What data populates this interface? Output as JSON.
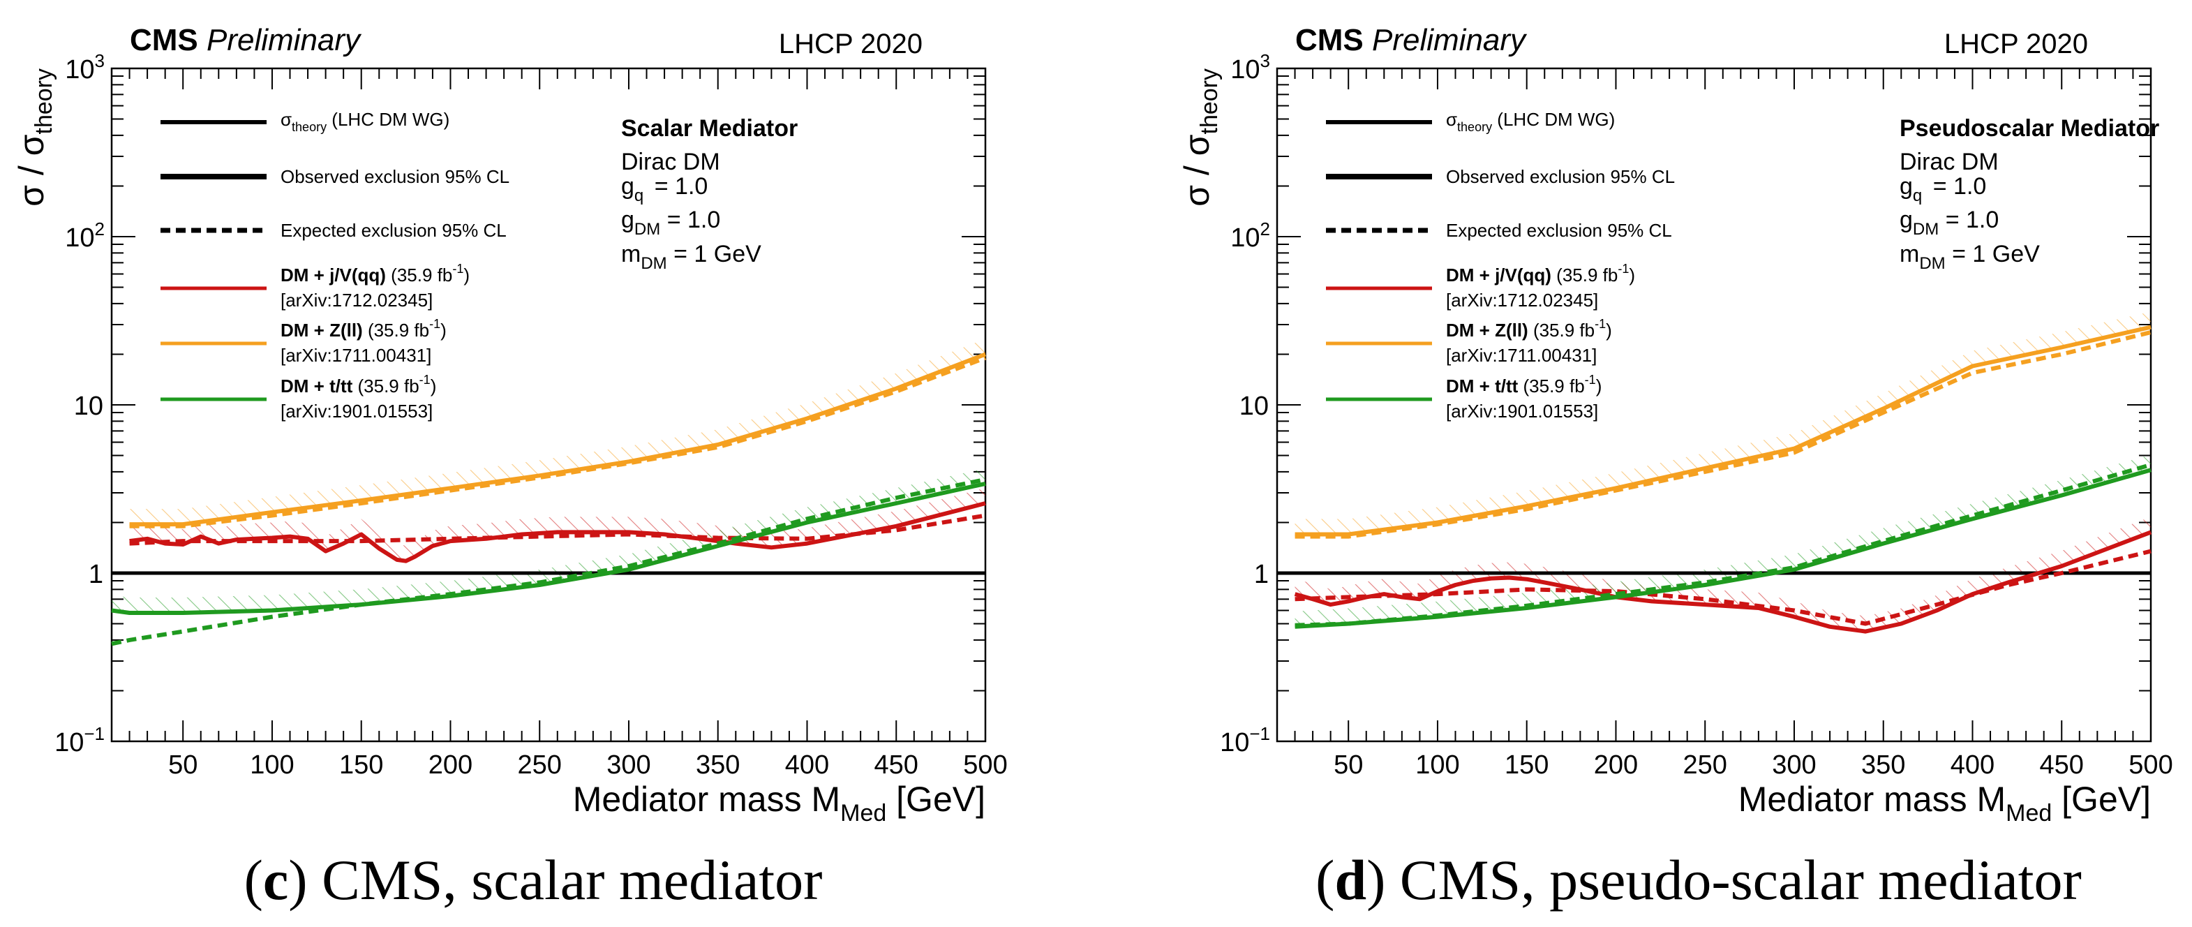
{
  "colors": {
    "axis": "#000000",
    "theory": "#000000",
    "jv": "#cc1414",
    "zll": "#f5a020",
    "ttbar": "#1f9a1f"
  },
  "legend": {
    "theory_sym": "σ",
    "theory_sub": "theory",
    "theory_tail": "(LHC DM WG)",
    "observed": "Observed exclusion 95% CL",
    "expected": "Expected exclusion 95% CL",
    "jv_bold": "DM + j/V(qq)",
    "jv_lumi": "(35.9 fb",
    "jv_ref": "[arXiv:1712.02345]",
    "zll_bold": "DM + Z(ll)",
    "zll_lumi": "(35.9 fb",
    "zll_ref": "[arXiv:1711.00431]",
    "tt_bold": "DM + t/tt",
    "tt_lumi": "(35.9 fb",
    "tt_ref": "[arXiv:1901.01553]",
    "lumi_exp": "-1",
    "lumi_close": ")"
  },
  "model": {
    "dirac": "Dirac DM",
    "gq_base": "g",
    "gq_sub": "q",
    "gq_val": "= 1.0",
    "gdm_base": "g",
    "gdm_sub": "DM",
    "gdm_val": "= 1.0",
    "mdm_base": "m",
    "mdm_sub": "DM",
    "mdm_val": "= 1 GeV"
  },
  "axes": {
    "y_sigma": "σ / σ",
    "y_sub": "theory",
    "x_label": "Mediator mass M",
    "x_sub": "Med",
    "x_unit": "[GeV]",
    "y_tick_labels": [
      "1",
      "10"
    ],
    "y_tick_base": "10",
    "y_tick_exps": [
      "−1",
      "2",
      "3"
    ]
  },
  "chart_data": [
    {
      "type": "line",
      "cms": "CMS",
      "prelim": "Preliminary",
      "conference": "LHCP 2020",
      "title": "Scalar Mediator",
      "caption_letter": "c",
      "caption_text": " CMS, scalar mediator",
      "x_range": [
        10,
        500
      ],
      "y_range": [
        0.1,
        1000
      ],
      "y_scale": "log",
      "x_ticks": [
        50,
        100,
        150,
        200,
        250,
        300,
        350,
        400,
        450,
        500
      ],
      "theory_line": 1,
      "series": [
        {
          "name": "DM + j/V(qq) observed",
          "key": "jv",
          "style": "solid",
          "x": [
            20,
            30,
            40,
            50,
            60,
            70,
            80,
            90,
            100,
            110,
            120,
            130,
            140,
            150,
            160,
            170,
            175,
            180,
            190,
            200,
            220,
            240,
            260,
            280,
            300,
            320,
            340,
            360,
            380,
            400,
            450,
            500
          ],
          "y": [
            1.55,
            1.6,
            1.5,
            1.48,
            1.65,
            1.5,
            1.58,
            1.6,
            1.62,
            1.65,
            1.6,
            1.35,
            1.5,
            1.7,
            1.4,
            1.2,
            1.18,
            1.25,
            1.45,
            1.55,
            1.6,
            1.7,
            1.75,
            1.75,
            1.75,
            1.7,
            1.6,
            1.5,
            1.42,
            1.5,
            1.9,
            2.6
          ]
        },
        {
          "name": "DM + j/V(qq) expected",
          "key": "jv",
          "style": "dashed",
          "x": [
            20,
            50,
            100,
            150,
            200,
            250,
            300,
            350,
            400,
            450,
            500
          ],
          "y": [
            1.5,
            1.55,
            1.55,
            1.55,
            1.6,
            1.65,
            1.7,
            1.62,
            1.6,
            1.8,
            2.2
          ]
        },
        {
          "name": "DM + Z(ll) observed",
          "key": "zll",
          "style": "solid",
          "x": [
            20,
            50,
            100,
            150,
            200,
            250,
            300,
            350,
            400,
            450,
            500
          ],
          "y": [
            1.95,
            1.95,
            2.3,
            2.7,
            3.2,
            3.8,
            4.6,
            5.8,
            8.3,
            12.5,
            20
          ]
        },
        {
          "name": "DM + Z(ll) expected",
          "key": "zll",
          "style": "dashed",
          "x": [
            20,
            50,
            100,
            150,
            200,
            250,
            300,
            350,
            400,
            450,
            500
          ],
          "y": [
            1.9,
            1.9,
            2.2,
            2.6,
            3.1,
            3.7,
            4.5,
            5.6,
            8.0,
            12.0,
            19
          ]
        },
        {
          "name": "DM + t/tt observed",
          "key": "ttbar",
          "style": "solid",
          "x": [
            10,
            20,
            50,
            100,
            150,
            200,
            250,
            300,
            350,
            400,
            450,
            500
          ],
          "y": [
            0.6,
            0.58,
            0.58,
            0.6,
            0.65,
            0.73,
            0.85,
            1.05,
            1.45,
            2.0,
            2.6,
            3.4
          ]
        },
        {
          "name": "DM + t/tt expected",
          "key": "ttbar",
          "style": "dashed",
          "x": [
            10,
            20,
            50,
            100,
            150,
            200,
            250,
            300,
            350,
            400,
            450,
            500
          ],
          "y": [
            0.38,
            0.4,
            0.45,
            0.55,
            0.65,
            0.75,
            0.88,
            1.1,
            1.5,
            2.1,
            2.8,
            3.6
          ]
        }
      ]
    },
    {
      "type": "line",
      "cms": "CMS",
      "prelim": "Preliminary",
      "conference": "LHCP 2020",
      "title": "Pseudoscalar Mediator",
      "caption_letter": "d",
      "caption_text": " CMS, pseudo-scalar mediator",
      "x_range": [
        10,
        500
      ],
      "y_range": [
        0.1,
        1000
      ],
      "y_scale": "log",
      "x_ticks": [
        50,
        100,
        150,
        200,
        250,
        300,
        350,
        400,
        450,
        500
      ],
      "theory_line": 1,
      "series": [
        {
          "name": "DM + j/V(qq) observed",
          "key": "jv",
          "style": "solid",
          "x": [
            20,
            30,
            40,
            50,
            60,
            70,
            80,
            90,
            100,
            110,
            120,
            130,
            140,
            150,
            160,
            180,
            200,
            220,
            250,
            280,
            300,
            320,
            340,
            360,
            380,
            400,
            420,
            450,
            500
          ],
          "y": [
            0.75,
            0.7,
            0.65,
            0.68,
            0.72,
            0.75,
            0.72,
            0.7,
            0.78,
            0.85,
            0.9,
            0.93,
            0.94,
            0.92,
            0.88,
            0.8,
            0.72,
            0.68,
            0.65,
            0.62,
            0.55,
            0.48,
            0.45,
            0.5,
            0.6,
            0.75,
            0.88,
            1.1,
            1.75
          ]
        },
        {
          "name": "DM + j/V(qq) expected",
          "key": "jv",
          "style": "dashed",
          "x": [
            20,
            50,
            100,
            150,
            200,
            250,
            300,
            340,
            380,
            420,
            450,
            500
          ],
          "y": [
            0.7,
            0.72,
            0.75,
            0.8,
            0.78,
            0.7,
            0.6,
            0.5,
            0.65,
            0.85,
            1.0,
            1.35
          ]
        },
        {
          "name": "DM + Z(ll) observed",
          "key": "zll",
          "style": "solid",
          "x": [
            20,
            50,
            100,
            150,
            200,
            250,
            300,
            350,
            400,
            450,
            500
          ],
          "y": [
            1.7,
            1.7,
            2.0,
            2.5,
            3.2,
            4.2,
            5.5,
            9.5,
            17,
            22,
            29
          ]
        },
        {
          "name": "DM + Z(ll) expected",
          "key": "zll",
          "style": "dashed",
          "x": [
            20,
            50,
            100,
            150,
            200,
            250,
            300,
            350,
            400,
            450,
            500
          ],
          "y": [
            1.65,
            1.65,
            1.95,
            2.4,
            3.1,
            4.0,
            5.2,
            9.0,
            15.5,
            20,
            27
          ]
        },
        {
          "name": "DM + t/tt observed",
          "key": "ttbar",
          "style": "solid",
          "x": [
            20,
            50,
            100,
            150,
            200,
            250,
            300,
            350,
            400,
            450,
            500
          ],
          "y": [
            0.48,
            0.5,
            0.55,
            0.62,
            0.72,
            0.85,
            1.05,
            1.5,
            2.1,
            2.9,
            4.1
          ]
        },
        {
          "name": "DM + t/tt expected",
          "key": "ttbar",
          "style": "dashed",
          "x": [
            20,
            50,
            100,
            150,
            200,
            250,
            300,
            350,
            400,
            450,
            500
          ],
          "y": [
            0.49,
            0.5,
            0.56,
            0.64,
            0.75,
            0.88,
            1.08,
            1.55,
            2.2,
            3.1,
            4.4
          ]
        }
      ]
    }
  ]
}
